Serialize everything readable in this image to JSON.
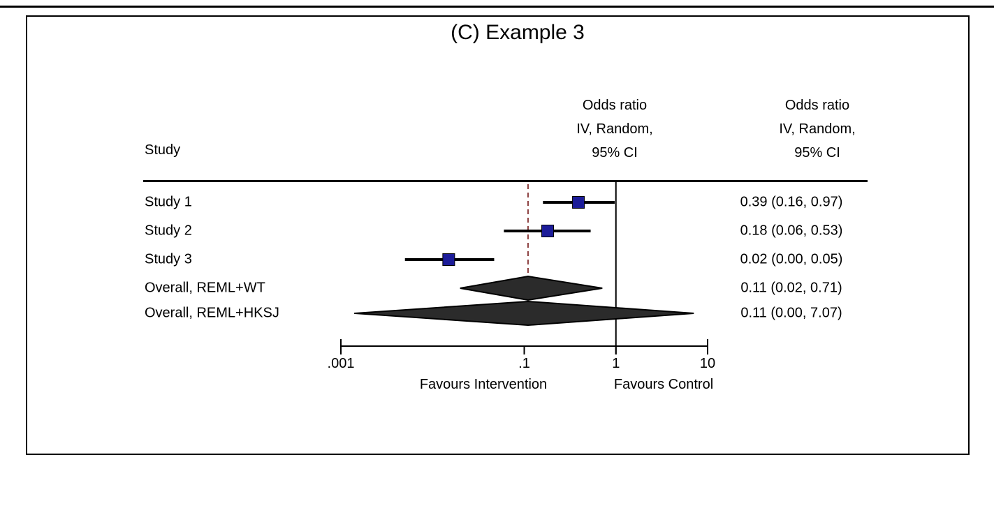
{
  "title": "(C) Example 3",
  "columns": {
    "study_header": "Study",
    "plot_header_lines": [
      "Odds ratio",
      "IV, Random,",
      "95% CI"
    ],
    "values_header_lines": [
      "Odds ratio",
      "IV, Random,",
      "95% CI"
    ]
  },
  "chart_data": {
    "type": "forest",
    "effect_measure": "Odds ratio",
    "model": "IV, Random, 95% CI",
    "x_scale": "log",
    "x_axis_range": [
      0.001,
      10
    ],
    "x_ticks": [
      {
        "value": 0.001,
        "label": ".001"
      },
      {
        "value": 0.1,
        "label": ".1"
      },
      {
        "value": 1,
        "label": "1"
      },
      {
        "value": 10,
        "label": "10"
      }
    ],
    "null_line_value": 1,
    "reference_line_value": 0.11,
    "favours_left": "Favours Intervention",
    "favours_right": "Favours Control",
    "rows": [
      {
        "label": "Study 1",
        "display": "0.39 (0.16, 0.97)",
        "est": 0.39,
        "lo": 0.16,
        "hi": 0.97,
        "marker": "square"
      },
      {
        "label": "Study 2",
        "display": "0.18 (0.06, 0.53)",
        "est": 0.18,
        "lo": 0.06,
        "hi": 0.53,
        "marker": "square"
      },
      {
        "label": "Study 3",
        "display": "0.02 (0.00, 0.05)",
        "est": 0.015,
        "lo": 0.005,
        "hi": 0.047,
        "marker": "square"
      },
      {
        "label": "Overall, REML+WT",
        "display": "0.11 (0.02, 0.71)",
        "est": 0.11,
        "lo": 0.02,
        "hi": 0.71,
        "marker": "diamond"
      },
      {
        "label": "Overall, REML+HKSJ",
        "display": "0.11 (0.00, 7.07)",
        "est": 0.11,
        "lo": 0.0014,
        "hi": 7.07,
        "marker": "diamond"
      }
    ]
  },
  "colors": {
    "square": "#1c1c99",
    "diamond_fill": "#2b2b2b",
    "diamond_stroke": "#000000",
    "ci_line": "#000000",
    "reference_line": "#8b3e3e",
    "axis": "#000000"
  }
}
